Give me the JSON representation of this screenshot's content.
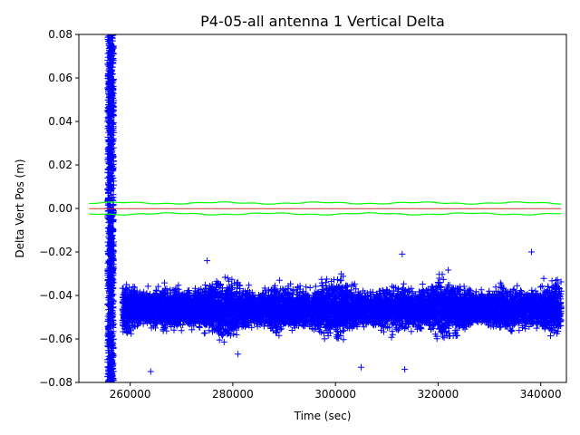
{
  "chart_data": {
    "type": "scatter",
    "title": "P4-05-all antenna 1 Vertical Delta",
    "xlabel": "Time (sec)",
    "ylabel": "Delta Vert Pos (m)",
    "xlim": [
      250000,
      345000
    ],
    "ylim": [
      -0.08,
      0.08
    ],
    "x_ticks": [
      260000,
      280000,
      300000,
      320000,
      340000
    ],
    "x_tick_labels": [
      "260000",
      "280000",
      "300000",
      "320000",
      "340000"
    ],
    "y_ticks": [
      -0.08,
      -0.06,
      -0.04,
      -0.02,
      0.0,
      0.02,
      0.04,
      0.06,
      0.08
    ],
    "y_tick_labels": [
      "−0.08",
      "−0.06",
      "−0.04",
      "−0.02",
      "0.00",
      "0.02",
      "0.04",
      "0.06",
      "0.08"
    ],
    "grid": false,
    "legend": "none",
    "series": [
      {
        "marker": "+",
        "color": "#0000ff",
        "description_points": "dense scatter of vertical position deltas",
        "segments": [
          {
            "x_range": [
              255600,
              256800
            ],
            "y_range": [
              -0.08,
              0.08
            ]
          },
          {
            "x_range": [
              258500,
              344000
            ],
            "y_center": -0.046,
            "y_spread": 0.016
          }
        ],
        "outliers": [
          {
            "x": 313000,
            "y": -0.021
          },
          {
            "x": 338200,
            "y": -0.02
          },
          {
            "x": 275000,
            "y": -0.024
          },
          {
            "x": 281000,
            "y": -0.067
          },
          {
            "x": 264000,
            "y": -0.075
          },
          {
            "x": 305000,
            "y": -0.073
          },
          {
            "x": 313500,
            "y": -0.074
          }
        ]
      },
      {
        "color": "#00ff00",
        "style": "line",
        "x_range": [
          252000,
          344000
        ],
        "upper_y": 0.0025,
        "lower_y": -0.0025,
        "wobble": 0.0006
      },
      {
        "color": "#cc3333",
        "style": "line",
        "x_range": [
          252000,
          344000
        ],
        "y": -0.0001
      }
    ]
  }
}
